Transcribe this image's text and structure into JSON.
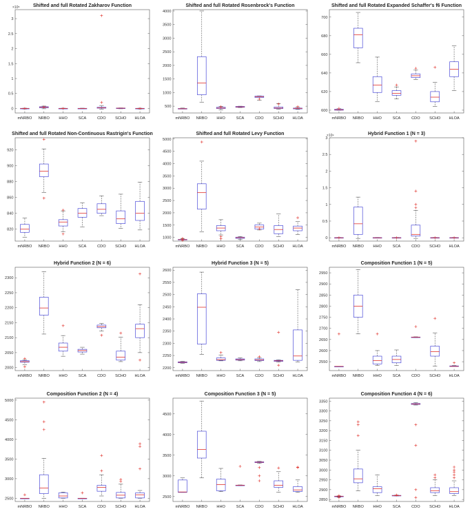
{
  "colors": {
    "box": "#4a4ad8",
    "median": "#e0302a",
    "outlier": "#e0302a",
    "whisker": "#333333",
    "axis": "#555555"
  },
  "categories": [
    "mNRBO",
    "NRBO",
    "HHO",
    "SCA",
    "CDO",
    "SCHO",
    "HLOA"
  ],
  "chart_data": [
    {
      "type": "box",
      "title": "Shifted and full Rotated Zakharov Function",
      "exponent": "×10⁵",
      "ylim": [
        -0.15,
        3.3
      ],
      "yticks": [
        "0",
        "0.5",
        "1",
        "1.5",
        "2",
        "2.5",
        "3"
      ],
      "boxes": [
        {
          "whislo": -0.02,
          "q1": -0.01,
          "med": 0.0,
          "q3": 0.005,
          "whishi": 0.01,
          "fliers": [
            0.0
          ]
        },
        {
          "whislo": -0.01,
          "q1": 0.02,
          "med": 0.04,
          "q3": 0.06,
          "whishi": 0.08,
          "fliers": [
            0.05
          ]
        },
        {
          "whislo": -0.01,
          "q1": 0.0,
          "med": 0.0,
          "q3": 0.005,
          "whishi": 0.01,
          "fliers": [
            0.0
          ]
        },
        {
          "whislo": -0.01,
          "q1": 0.0,
          "med": 0.0,
          "q3": 0.005,
          "whishi": 0.01,
          "fliers": []
        },
        {
          "whislo": -0.02,
          "q1": 0.01,
          "med": 0.02,
          "q3": 0.04,
          "whishi": 0.1,
          "fliers": [
            3.1,
            0.2
          ]
        },
        {
          "whislo": -0.01,
          "q1": 0.0,
          "med": 0.01,
          "q3": 0.015,
          "whishi": 0.02,
          "fliers": []
        },
        {
          "whislo": -0.02,
          "q1": 0.0,
          "med": 0.0,
          "q3": 0.005,
          "whishi": 0.01,
          "fliers": [
            0.0
          ]
        }
      ]
    },
    {
      "type": "box",
      "title": "Shifted and full Rotated Rosenbrock's Function",
      "exponent": "",
      "ylim": [
        250,
        4050
      ],
      "yticks": [
        "500",
        "1000",
        "1500",
        "2000",
        "2500",
        "3000",
        "3500",
        "4000"
      ],
      "boxes": [
        {
          "whislo": 400,
          "q1": 400,
          "med": 405,
          "q3": 415,
          "whishi": 430,
          "fliers": []
        },
        {
          "whislo": 650,
          "q1": 920,
          "med": 1350,
          "q3": 2320,
          "whishi": 4000,
          "fliers": []
        },
        {
          "whislo": 370,
          "q1": 410,
          "med": 430,
          "q3": 460,
          "whishi": 490,
          "fliers": [
            480
          ]
        },
        {
          "whislo": 450,
          "q1": 460,
          "med": 475,
          "q3": 490,
          "whishi": 500,
          "fliers": []
        },
        {
          "whislo": 720,
          "q1": 820,
          "med": 850,
          "q3": 870,
          "whishi": 880,
          "fliers": [
            760
          ]
        },
        {
          "whislo": 390,
          "q1": 410,
          "med": 430,
          "q3": 470,
          "whishi": 600,
          "fliers": [
            580
          ]
        },
        {
          "whislo": 380,
          "q1": 400,
          "med": 420,
          "q3": 430,
          "whishi": 470,
          "fliers": [
            480
          ]
        }
      ]
    },
    {
      "type": "box",
      "title": "Shifted and full Rotated Expanded Schaffer's f6 Function",
      "exponent": "",
      "ylim": [
        597,
        708
      ],
      "yticks": [
        "600",
        "620",
        "640",
        "660",
        "680",
        "700"
      ],
      "boxes": [
        {
          "whislo": 600,
          "q1": 600,
          "med": 600.5,
          "q3": 601,
          "whishi": 602,
          "fliers": [
            602
          ]
        },
        {
          "whislo": 651,
          "q1": 667,
          "med": 681,
          "q3": 688,
          "whishi": 705,
          "fliers": []
        },
        {
          "whislo": 609,
          "q1": 619,
          "med": 627,
          "q3": 636,
          "whishi": 657,
          "fliers": []
        },
        {
          "whislo": 612,
          "q1": 616,
          "med": 618,
          "q3": 621,
          "whishi": 625,
          "fliers": [
            627
          ]
        },
        {
          "whislo": 633,
          "q1": 635,
          "med": 637,
          "q3": 639,
          "whishi": 643,
          "fliers": [
            645
          ]
        },
        {
          "whislo": 604,
          "q1": 609,
          "med": 614,
          "q3": 620,
          "whishi": 630,
          "fliers": [
            646
          ]
        },
        {
          "whislo": 621,
          "q1": 636,
          "med": 644,
          "q3": 652,
          "whishi": 669,
          "fliers": []
        }
      ]
    },
    {
      "type": "box",
      "title": "Shifted and full Rotated Non-Continuous Rastrigin's Function",
      "exponent": "",
      "ylim": [
        805,
        935
      ],
      "yticks": [
        "820",
        "840",
        "860",
        "880",
        "900",
        "920"
      ],
      "boxes": [
        {
          "whislo": 810,
          "q1": 816,
          "med": 820,
          "q3": 826,
          "whishi": 834,
          "fliers": []
        },
        {
          "whislo": 866,
          "q1": 886,
          "med": 893,
          "q3": 902,
          "whishi": 921,
          "fliers": [
            859,
            933
          ]
        },
        {
          "whislo": 817,
          "q1": 824,
          "med": 829,
          "q3": 832,
          "whishi": 843,
          "fliers": [
            814,
            844
          ]
        },
        {
          "whislo": 823,
          "q1": 835,
          "med": 840,
          "q3": 846,
          "whishi": 853,
          "fliers": []
        },
        {
          "whislo": 837,
          "q1": 840,
          "med": 845,
          "q3": 852,
          "whishi": 862,
          "fliers": []
        },
        {
          "whislo": 821,
          "q1": 827,
          "med": 833,
          "q3": 843,
          "whishi": 864,
          "fliers": []
        },
        {
          "whislo": 819,
          "q1": 831,
          "med": 840,
          "q3": 855,
          "whishi": 879,
          "fliers": []
        }
      ]
    },
    {
      "type": "box",
      "title": "Shifted and full Rotated Levy Function",
      "exponent": "",
      "ylim": [
        850,
        5050
      ],
      "yticks": [
        "1000",
        "1500",
        "2000",
        "2500",
        "3000",
        "3500",
        "4000",
        "4500",
        "5000"
      ],
      "boxes": [
        {
          "whislo": 900,
          "q1": 905,
          "med": 910,
          "q3": 920,
          "whishi": 940,
          "fliers": [
            880,
            960
          ]
        },
        {
          "whislo": 1220,
          "q1": 2150,
          "med": 2820,
          "q3": 3180,
          "whishi": 4100,
          "fliers": [
            4880
          ]
        },
        {
          "whislo": 1100,
          "q1": 1270,
          "med": 1380,
          "q3": 1480,
          "whishi": 1720,
          "fliers": [
            950,
            1030
          ]
        },
        {
          "whislo": 910,
          "q1": 960,
          "med": 990,
          "q3": 1010,
          "whishi": 1040,
          "fliers": []
        },
        {
          "whislo": 1300,
          "q1": 1340,
          "med": 1420,
          "q3": 1510,
          "whishi": 1580,
          "fliers": [
            1350
          ]
        },
        {
          "whislo": 1040,
          "q1": 1150,
          "med": 1320,
          "q3": 1480,
          "whishi": 1950,
          "fliers": []
        },
        {
          "whislo": 1120,
          "q1": 1270,
          "med": 1380,
          "q3": 1460,
          "whishi": 1640,
          "fliers": [
            1800
          ]
        }
      ]
    },
    {
      "type": "box",
      "title": "Hybrid Function 1 (N = 3)",
      "exponent": "×10⁹",
      "ylim": [
        -0.1,
        3.0
      ],
      "yticks": [
        "0",
        "0.5",
        "1",
        "1.5",
        "2",
        "2.5",
        "3"
      ],
      "boxes": [
        {
          "whislo": 0.0,
          "q1": 0.0,
          "med": 0.0,
          "q3": 0.005,
          "whishi": 0.01,
          "fliers": [
            0.0
          ]
        },
        {
          "whislo": -0.02,
          "q1": 0.1,
          "med": 0.42,
          "q3": 0.92,
          "whishi": 1.22,
          "fliers": []
        },
        {
          "whislo": 0.0,
          "q1": 0.0,
          "med": 0.0,
          "q3": 0.005,
          "whishi": 0.01,
          "fliers": []
        },
        {
          "whislo": 0.0,
          "q1": 0.0,
          "med": 0.0,
          "q3": 0.005,
          "whishi": 0.01,
          "fliers": [
            0.0
          ]
        },
        {
          "whislo": -0.02,
          "q1": 0.05,
          "med": 0.1,
          "q3": 0.38,
          "whishi": 0.82,
          "fliers": [
            0.9,
            1.0,
            1.4,
            2.9
          ]
        },
        {
          "whislo": 0.0,
          "q1": 0.0,
          "med": 0.0,
          "q3": 0.005,
          "whishi": 0.01,
          "fliers": [
            0.0
          ]
        },
        {
          "whislo": 0.0,
          "q1": 0.0,
          "med": 0.0,
          "q3": 0.005,
          "whishi": 0.01,
          "fliers": [
            0.0
          ]
        }
      ]
    },
    {
      "type": "box",
      "title": "Hybrid Function 2 (N = 6)",
      "exponent": "",
      "ylim": [
        1990,
        2335
      ],
      "yticks": [
        "2000",
        "2050",
        "2100",
        "2150",
        "2200",
        "2250",
        "2300"
      ],
      "boxes": [
        {
          "whislo": 2010,
          "q1": 2018,
          "med": 2020,
          "q3": 2023,
          "whishi": 2026,
          "fliers": [
            2003,
            2030
          ]
        },
        {
          "whislo": 2112,
          "q1": 2175,
          "med": 2199,
          "q3": 2235,
          "whishi": 2320,
          "fliers": []
        },
        {
          "whislo": 2038,
          "q1": 2055,
          "med": 2068,
          "q3": 2082,
          "whishi": 2107,
          "fliers": [
            2140
          ]
        },
        {
          "whislo": 2045,
          "q1": 2052,
          "med": 2057,
          "q3": 2061,
          "whishi": 2068,
          "fliers": []
        },
        {
          "whislo": 2122,
          "q1": 2133,
          "med": 2137,
          "q3": 2142,
          "whishi": 2148,
          "fliers": [
            2108
          ]
        },
        {
          "whislo": 2020,
          "q1": 2025,
          "med": 2035,
          "q3": 2055,
          "whishi": 2102,
          "fliers": [
            2115
          ]
        },
        {
          "whislo": 2050,
          "q1": 2100,
          "med": 2130,
          "q3": 2145,
          "whishi": 2210,
          "fliers": [
            2025,
            2313
          ]
        }
      ]
    },
    {
      "type": "box",
      "title": "Hybrid Function 3 (N = 5)",
      "exponent": "",
      "ylim": [
        2188,
        2612
      ],
      "yticks": [
        "2200",
        "2250",
        "2300",
        "2350",
        "2400",
        "2450",
        "2500",
        "2550",
        "2600"
      ],
      "boxes": [
        {
          "whislo": 2218,
          "q1": 2220,
          "med": 2222,
          "q3": 2224,
          "whishi": 2226,
          "fliers": []
        },
        {
          "whislo": 2255,
          "q1": 2297,
          "med": 2448,
          "q3": 2503,
          "whishi": 2592,
          "fliers": []
        },
        {
          "whislo": 2228,
          "q1": 2230,
          "med": 2233,
          "q3": 2240,
          "whishi": 2252,
          "fliers": [
            2262
          ]
        },
        {
          "whislo": 2228,
          "q1": 2231,
          "med": 2233,
          "q3": 2236,
          "whishi": 2240,
          "fliers": []
        },
        {
          "whislo": 2225,
          "q1": 2229,
          "med": 2232,
          "q3": 2236,
          "whishi": 2240,
          "fliers": [
            2245
          ]
        },
        {
          "whislo": 2223,
          "q1": 2226,
          "med": 2228,
          "q3": 2230,
          "whishi": 2232,
          "fliers": [
            2210,
            2345
          ]
        },
        {
          "whislo": 2223,
          "q1": 2230,
          "med": 2248,
          "q3": 2355,
          "whishi": 2520,
          "fliers": []
        }
      ]
    },
    {
      "type": "box",
      "title": "Composition Function 1 (N = 5)",
      "exponent": "",
      "ylim": [
        2510,
        2975
      ],
      "yticks": [
        "2550",
        "2600",
        "2650",
        "2700",
        "2750",
        "2800",
        "2850",
        "2900",
        "2950"
      ],
      "boxes": [
        {
          "whislo": 2529,
          "q1": 2529,
          "med": 2529,
          "q3": 2529,
          "whishi": 2529,
          "fliers": [
            2675
          ]
        },
        {
          "whislo": 2675,
          "q1": 2750,
          "med": 2800,
          "q3": 2850,
          "whishi": 2965,
          "fliers": []
        },
        {
          "whislo": 2533,
          "q1": 2540,
          "med": 2555,
          "q3": 2575,
          "whishi": 2600,
          "fliers": [
            2675
          ]
        },
        {
          "whislo": 2533,
          "q1": 2545,
          "med": 2560,
          "q3": 2575,
          "whishi": 2603,
          "fliers": []
        },
        {
          "whislo": 2658,
          "q1": 2659,
          "med": 2660,
          "q3": 2661,
          "whishi": 2662,
          "fliers": [
            2708
          ]
        },
        {
          "whislo": 2530,
          "q1": 2575,
          "med": 2595,
          "q3": 2620,
          "whishi": 2680,
          "fliers": [
            2745
          ]
        },
        {
          "whislo": 2529,
          "q1": 2529,
          "med": 2529,
          "q3": 2531,
          "whishi": 2533,
          "fliers": [
            2545
          ]
        }
      ]
    },
    {
      "type": "box",
      "title": "Composition Function 2 (N = 4)",
      "exponent": "",
      "ylim": [
        2420,
        5050
      ],
      "yticks": [
        "2500",
        "3000",
        "3500",
        "4000",
        "4500",
        "5000"
      ],
      "boxes": [
        {
          "whislo": 2500,
          "q1": 2500,
          "med": 2501,
          "q3": 2502,
          "whishi": 2503,
          "fliers": [
            2590
          ]
        },
        {
          "whislo": 2500,
          "q1": 2620,
          "med": 2760,
          "q3": 3100,
          "whishi": 3520,
          "fliers": [
            4250,
            4450,
            4950
          ]
        },
        {
          "whislo": 2500,
          "q1": 2510,
          "med": 2560,
          "q3": 2640,
          "whishi": 2660,
          "fliers": []
        },
        {
          "whislo": 2500,
          "q1": 2500,
          "med": 2500,
          "q3": 2502,
          "whishi": 2504,
          "fliers": [
            2640
          ]
        },
        {
          "whislo": 2560,
          "q1": 2680,
          "med": 2780,
          "q3": 2830,
          "whishi": 3100,
          "fliers": [
            3200,
            3590
          ]
        },
        {
          "whislo": 2500,
          "q1": 2510,
          "med": 2580,
          "q3": 2650,
          "whishi": 2860,
          "fliers": [
            2930,
            2980
          ]
        },
        {
          "whislo": 2500,
          "q1": 2510,
          "med": 2590,
          "q3": 2640,
          "whishi": 2700,
          "fliers": [
            3250,
            3820,
            3890
          ]
        }
      ]
    },
    {
      "type": "box",
      "title": "Composition Function 3 (N = 5)",
      "exponent": "",
      "ylim": [
        2380,
        4880
      ],
      "yticks": [
        "2500",
        "3000",
        "3500",
        "4000",
        "4500"
      ],
      "boxes": [
        {
          "whislo": 2600,
          "q1": 2600,
          "med": 2610,
          "q3": 2900,
          "whishi": 2950,
          "fliers": []
        },
        {
          "whislo": 2950,
          "q1": 3430,
          "med": 3640,
          "q3": 4080,
          "whishi": 4810,
          "fliers": []
        },
        {
          "whislo": 2620,
          "q1": 2640,
          "med": 2790,
          "q3": 2920,
          "whishi": 3180,
          "fliers": []
        },
        {
          "whislo": 2760,
          "q1": 2765,
          "med": 2770,
          "q3": 2775,
          "whishi": 2780,
          "fliers": [
            3230
          ]
        },
        {
          "whislo": 3300,
          "q1": 3320,
          "med": 3330,
          "q3": 3340,
          "whishi": 3350,
          "fliers": [
            2880,
            3000,
            3200
          ]
        },
        {
          "whislo": 2600,
          "q1": 2720,
          "med": 2770,
          "q3": 2880,
          "whishi": 3100,
          "fliers": [
            3190
          ]
        },
        {
          "whislo": 2600,
          "q1": 2620,
          "med": 2660,
          "q3": 2740,
          "whishi": 2900,
          "fliers": [
            3200,
            3210
          ]
        }
      ]
    },
    {
      "type": "box",
      "title": "Composition Function 4 (N = 6)",
      "exponent": "",
      "ylim": [
        2840,
        3365
      ],
      "yticks": [
        "2850",
        "2900",
        "2950",
        "3000",
        "3050",
        "3100",
        "3150",
        "3200",
        "3250",
        "3300",
        "3350"
      ],
      "boxes": [
        {
          "whislo": 2862,
          "q1": 2864,
          "med": 2866,
          "q3": 2867,
          "whishi": 2868,
          "fliers": [
            2860,
            2870
          ]
        },
        {
          "whislo": 2895,
          "q1": 2935,
          "med": 2955,
          "q3": 3005,
          "whishi": 3100,
          "fliers": [
            3175,
            3230,
            3245
          ]
        },
        {
          "whislo": 2870,
          "q1": 2885,
          "med": 2905,
          "q3": 2915,
          "whishi": 2975,
          "fliers": []
        },
        {
          "whislo": 2868,
          "q1": 2869,
          "med": 2870,
          "q3": 2871,
          "whishi": 2872,
          "fliers": [
            2873
          ]
        },
        {
          "whislo": 3330,
          "q1": 3333,
          "med": 3335,
          "q3": 3338,
          "whishi": 3342,
          "fliers": [
            2860,
            2900,
            3125,
            3230
          ]
        },
        {
          "whislo": 2870,
          "q1": 2885,
          "med": 2895,
          "q3": 2910,
          "whishi": 2950,
          "fliers": [
            2960,
            2975
          ]
        },
        {
          "whislo": 2870,
          "q1": 2880,
          "med": 2890,
          "q3": 2910,
          "whishi": 2945,
          "fliers": [
            2960,
            2975,
            2990,
            3000,
            3015
          ]
        }
      ]
    }
  ]
}
